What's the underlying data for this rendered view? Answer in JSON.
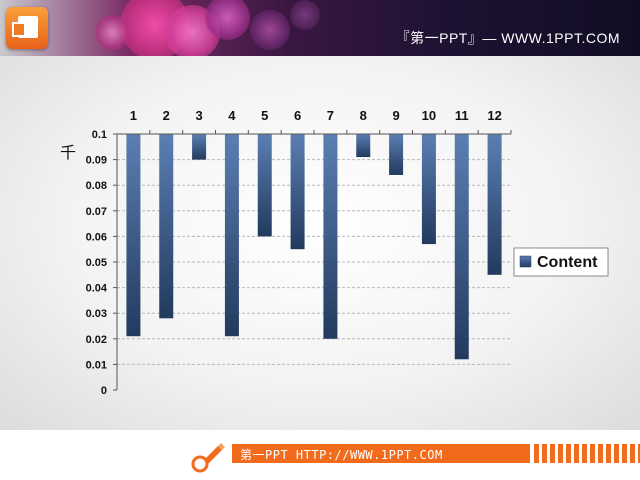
{
  "header": {
    "title": "『第一PPT』— WWW.1PPT.COM",
    "logo_icon": "powerpoint-logo-icon"
  },
  "footer": {
    "text": "第一PPT HTTP://WWW.1PPT.COM",
    "icon": "pencil-icon",
    "accent_color": "#f26b1d"
  },
  "chart_data": {
    "type": "bar",
    "title": "",
    "ylabel": "千",
    "xlabel": "",
    "categories": [
      "1",
      "2",
      "3",
      "4",
      "5",
      "6",
      "7",
      "8",
      "9",
      "10",
      "11",
      "12"
    ],
    "series": [
      {
        "name": "Content",
        "values": [
          0.079,
          0.072,
          0.01,
          0.079,
          0.04,
          0.045,
          0.08,
          0.009,
          0.016,
          0.043,
          0.088,
          0.055
        ]
      }
    ],
    "ylim": [
      0,
      0.1
    ],
    "yticks": [
      "0.1",
      "0.09",
      "0.08",
      "0.07",
      "0.06",
      "0.05",
      "0.04",
      "0.03",
      "0.02",
      "0.01",
      "0"
    ],
    "y_axis_direction": "reversed (0.1 at top, 0 at bottom; bars hang from top)",
    "x_axis_position": "top",
    "grid": true,
    "legend_position": "right",
    "bar_color": "#3e5e8e"
  }
}
